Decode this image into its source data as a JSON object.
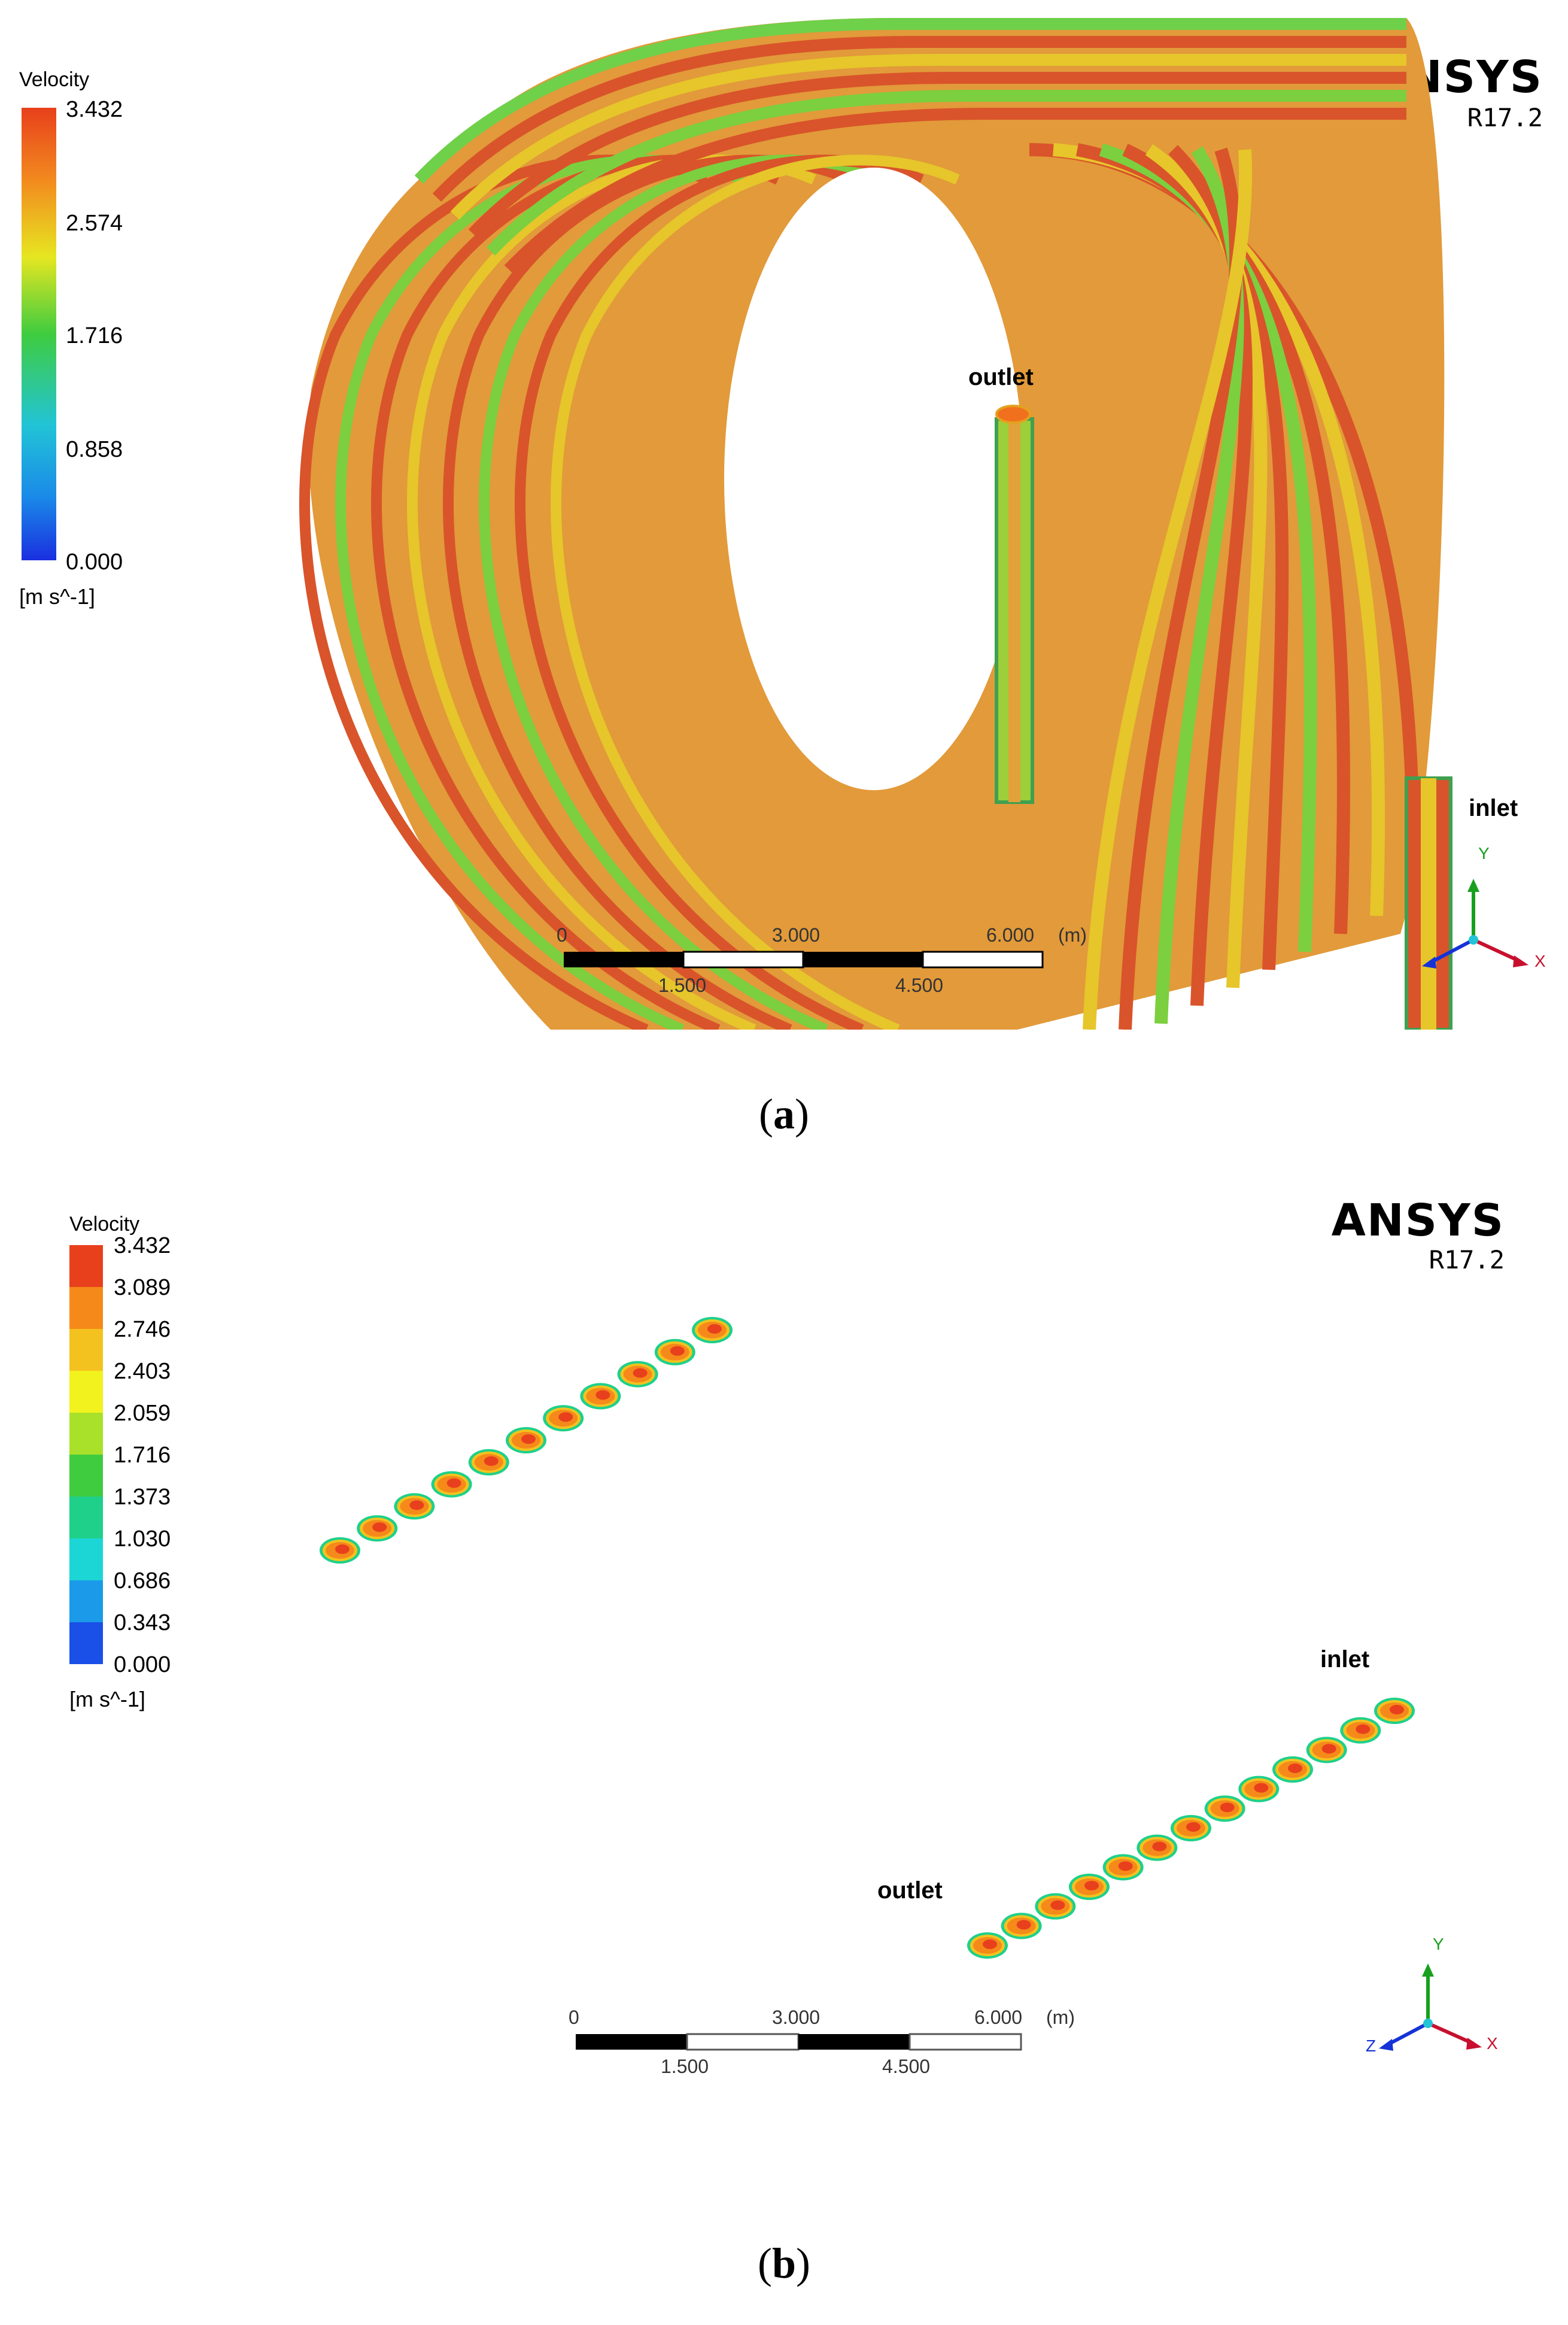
{
  "panel_a": {
    "legend": {
      "title": "Velocity",
      "ticks": [
        "3.432",
        "2.574",
        "1.716",
        "0.858",
        "0.000"
      ],
      "unit": "[m s^-1]"
    },
    "brand": "ANSYS",
    "version": "R17.2",
    "outlet_label": "outlet",
    "inlet_label": "inlet",
    "scale_bar": {
      "top_labels": [
        "0",
        "3.000",
        "6.000",
        "(m)"
      ],
      "bottom_labels": [
        "1.500",
        "4.500"
      ]
    },
    "axes": {
      "y": "Y",
      "x": "X"
    },
    "caption": {
      "open": "(",
      "letter": "a",
      "close": ")"
    }
  },
  "panel_b": {
    "legend": {
      "title": "Velocity",
      "ticks": [
        "3.432",
        "3.089",
        "2.746",
        "2.403",
        "2.059",
        "1.716",
        "1.373",
        "1.030",
        "0.686",
        "0.343",
        "0.000"
      ],
      "unit": "[m s^-1]"
    },
    "brand": "ANSYS",
    "version": "R17.2",
    "inlet_label": "inlet",
    "outlet_label": "outlet",
    "scale_bar": {
      "top_labels": [
        "0",
        "3.000",
        "6.000",
        "(m)"
      ],
      "bottom_labels": [
        "1.500",
        "4.500"
      ]
    },
    "axes": {
      "y": "Y",
      "x": "X",
      "z": "Z"
    },
    "caption": {
      "open": "(",
      "letter": "b",
      "close": ")"
    },
    "upper_row_count": 11,
    "lower_row_count": 13
  },
  "colors": {
    "velocity_high": "#e8401c",
    "velocity_mid_high": "#f0a21e",
    "velocity_mid": "#e6e621",
    "velocity_low_mid": "#3fcc3f",
    "velocity_low": "#22c4d6",
    "velocity_min": "#1a3fe0",
    "axis_x": "#c8102e",
    "axis_y": "#18a01e",
    "axis_z": "#1533d6"
  }
}
